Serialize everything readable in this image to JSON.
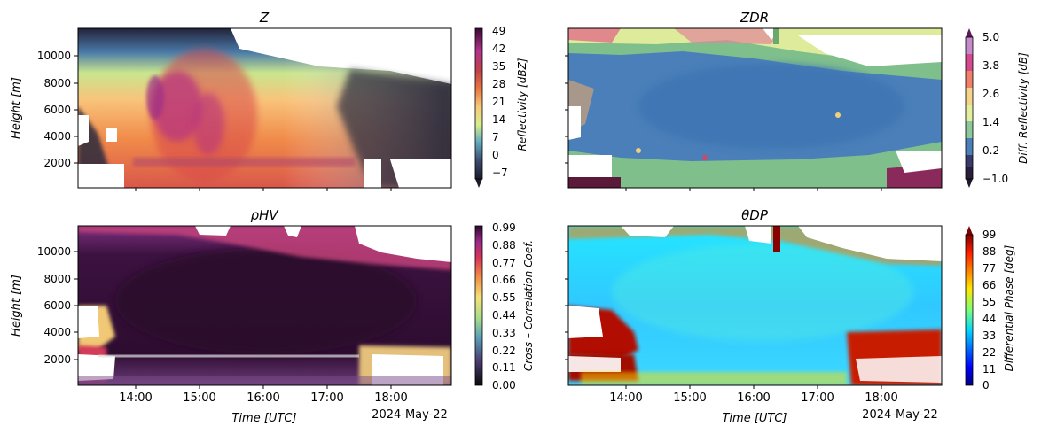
{
  "figure": {
    "date_label": "2024-May-22",
    "time_ticks": [
      "14:00",
      "15:00",
      "16:00",
      "17:00",
      "18:00"
    ],
    "x_axis_label": "Time [UTC]",
    "y_axis_label": "Height [m]",
    "height_ticks": [
      "2000",
      "4000",
      "6000",
      "8000",
      "10000"
    ]
  },
  "chart_data": [
    {
      "type": "heatmap",
      "title": "Z",
      "xlabel": "",
      "ylabel": "Height [m]",
      "xlim": [
        "13:07",
        "19:00"
      ],
      "ylim": [
        0,
        12000
      ],
      "colorbar": {
        "label": "Reflectivity [dBZ]",
        "ticks": [
          "49",
          "42",
          "35",
          "28",
          "21",
          "14",
          "7",
          "0",
          "−7"
        ],
        "colormap": "spectral_r",
        "range": [
          -10,
          49
        ]
      }
    },
    {
      "type": "heatmap",
      "title": "ZDR",
      "xlabel": "",
      "ylabel": "",
      "xlim": [
        "13:07",
        "19:00"
      ],
      "ylim": [
        0,
        12000
      ],
      "colorbar": {
        "label": "Diff. Reflectivity [dB]",
        "ticks": [
          "5.0",
          "3.8",
          "2.6",
          "1.4",
          "0.2",
          "−1.0"
        ],
        "colormap": "discrete",
        "range": [
          -1.0,
          5.0
        ]
      }
    },
    {
      "type": "heatmap",
      "title": "ρHV",
      "xlabel": "Time [UTC]",
      "ylabel": "Height [m]",
      "xlim": [
        "13:07",
        "19:00"
      ],
      "ylim": [
        0,
        12000
      ],
      "colorbar": {
        "label": "Cross – Correlation Coef.",
        "ticks": [
          "0.99",
          "0.88",
          "0.77",
          "0.66",
          "0.55",
          "0.44",
          "0.33",
          "0.22",
          "0.11",
          "0.00"
        ],
        "colormap": "magma_spectral",
        "range": [
          0.0,
          0.99
        ]
      }
    },
    {
      "type": "heatmap",
      "title": "θDP",
      "xlabel": "Time [UTC]",
      "ylabel": "",
      "xlim": [
        "13:07",
        "19:00"
      ],
      "ylim": [
        0,
        12000
      ],
      "colorbar": {
        "label": "Differential Phase [deg]",
        "ticks": [
          "99",
          "88",
          "77",
          "66",
          "55",
          "44",
          "33",
          "22",
          "11",
          "0"
        ],
        "colormap": "jet",
        "range": [
          0,
          99
        ]
      }
    }
  ]
}
